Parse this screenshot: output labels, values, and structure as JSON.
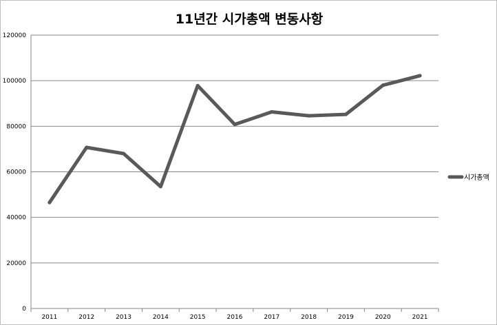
{
  "chart_data": {
    "type": "line",
    "title": "11년간 시가총액 변동사항",
    "xlabel": "",
    "ylabel": "",
    "categories": [
      "2011",
      "2012",
      "2013",
      "2014",
      "2015",
      "2016",
      "2017",
      "2018",
      "2019",
      "2020",
      "2021"
    ],
    "series": [
      {
        "name": "시가총액",
        "values": [
          46500,
          70700,
          68000,
          53500,
          97800,
          80800,
          86300,
          84600,
          85200,
          98000,
          102200
        ],
        "color": "#595959"
      }
    ],
    "ylim": [
      0,
      120000
    ],
    "yticks": [
      "0",
      "20000",
      "40000",
      "60000",
      "80000",
      "100000",
      "120000"
    ],
    "grid": true,
    "legend": "right"
  }
}
